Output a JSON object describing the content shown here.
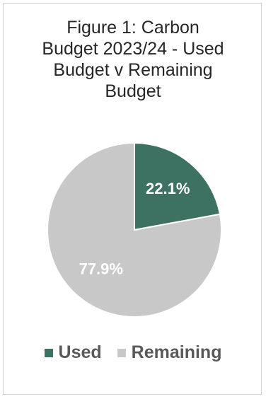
{
  "chart_data": {
    "type": "pie",
    "title": "Figure 1: Carbon Budget 2023/24 - Used Budget v Remaining Budget",
    "title_lines": [
      "Figure 1: Carbon",
      "Budget 2023/24 - Used",
      "Budget v Remaining",
      "Budget"
    ],
    "slices": [
      {
        "name": "Used",
        "value": 22.1,
        "label": "22.1%",
        "color": "#3d7263"
      },
      {
        "name": "Remaining",
        "value": 77.9,
        "label": "77.9%",
        "color": "#c8c8c8"
      }
    ],
    "legend": {
      "placement": "bottom",
      "entries": [
        "Used",
        "Remaining"
      ]
    }
  }
}
